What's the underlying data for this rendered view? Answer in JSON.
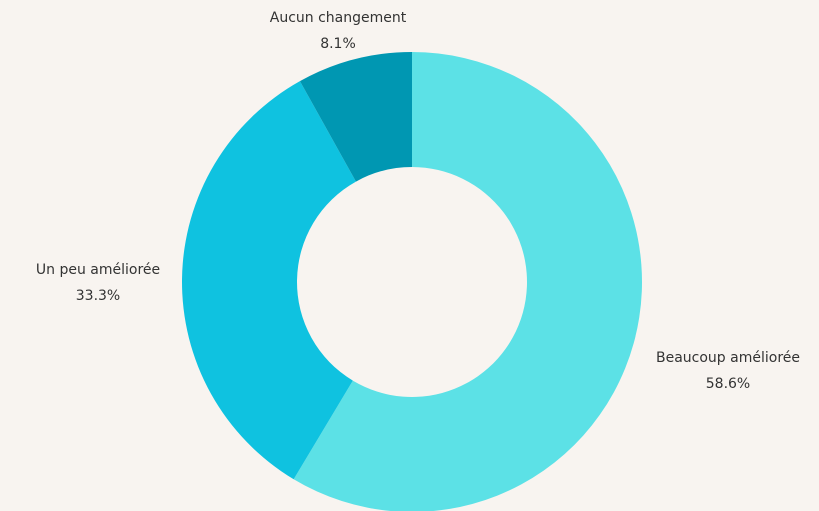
{
  "chart_data": {
    "type": "pie",
    "categories": [
      "Beaucoup améliorée",
      "Un peu améliorée",
      "Aucun changement"
    ],
    "values": [
      58.6,
      33.3,
      8.1
    ],
    "value_labels": [
      "58.6%",
      "33.3%",
      "8.1%"
    ],
    "colors": [
      "#5ce1e6",
      "#0fc2e0",
      "#0097b2"
    ]
  }
}
